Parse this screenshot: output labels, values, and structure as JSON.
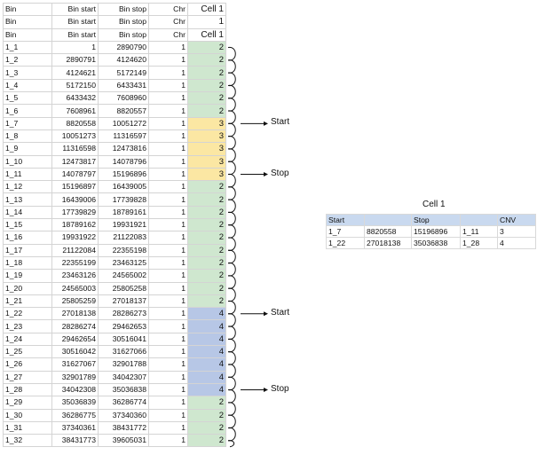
{
  "sheet": {
    "header_rows": [
      [
        "Bin",
        "Bin start",
        "Bin stop",
        "Chr",
        "Cell 1"
      ],
      [
        "Bin",
        "Bin start",
        "Bin stop",
        "Chr",
        "1"
      ],
      [
        "Bin",
        "Bin start",
        "Bin stop",
        "Chr",
        "Cell 1"
      ]
    ],
    "rows": [
      [
        "1_1",
        "1",
        "2890790",
        "1",
        "2"
      ],
      [
        "1_2",
        "2890791",
        "4124620",
        "1",
        "2"
      ],
      [
        "1_3",
        "4124621",
        "5172149",
        "1",
        "2"
      ],
      [
        "1_4",
        "5172150",
        "6433431",
        "1",
        "2"
      ],
      [
        "1_5",
        "6433432",
        "7608960",
        "1",
        "2"
      ],
      [
        "1_6",
        "7608961",
        "8820557",
        "1",
        "2"
      ],
      [
        "1_7",
        "8820558",
        "10051272",
        "1",
        "3"
      ],
      [
        "1_8",
        "10051273",
        "11316597",
        "1",
        "3"
      ],
      [
        "1_9",
        "11316598",
        "12473816",
        "1",
        "3"
      ],
      [
        "1_10",
        "12473817",
        "14078796",
        "1",
        "3"
      ],
      [
        "1_11",
        "14078797",
        "15196896",
        "1",
        "3"
      ],
      [
        "1_12",
        "15196897",
        "16439005",
        "1",
        "2"
      ],
      [
        "1_13",
        "16439006",
        "17739828",
        "1",
        "2"
      ],
      [
        "1_14",
        "17739829",
        "18789161",
        "1",
        "2"
      ],
      [
        "1_15",
        "18789162",
        "19931921",
        "1",
        "2"
      ],
      [
        "1_16",
        "19931922",
        "21122083",
        "1",
        "2"
      ],
      [
        "1_17",
        "21122084",
        "22355198",
        "1",
        "2"
      ],
      [
        "1_18",
        "22355199",
        "23463125",
        "1",
        "2"
      ],
      [
        "1_19",
        "23463126",
        "24565002",
        "1",
        "2"
      ],
      [
        "1_20",
        "24565003",
        "25805258",
        "1",
        "2"
      ],
      [
        "1_21",
        "25805259",
        "27018137",
        "1",
        "2"
      ],
      [
        "1_22",
        "27018138",
        "28286273",
        "1",
        "4"
      ],
      [
        "1_23",
        "28286274",
        "29462653",
        "1",
        "4"
      ],
      [
        "1_24",
        "29462654",
        "30516041",
        "1",
        "4"
      ],
      [
        "1_25",
        "30516042",
        "31627066",
        "1",
        "4"
      ],
      [
        "1_26",
        "31627067",
        "32901788",
        "1",
        "4"
      ],
      [
        "1_27",
        "32901789",
        "34042307",
        "1",
        "4"
      ],
      [
        "1_28",
        "34042308",
        "35036838",
        "1",
        "4"
      ],
      [
        "1_29",
        "35036839",
        "36286774",
        "1",
        "2"
      ],
      [
        "1_30",
        "36286775",
        "37340360",
        "1",
        "2"
      ],
      [
        "1_31",
        "37340361",
        "38431772",
        "1",
        "2"
      ],
      [
        "1_32",
        "38431773",
        "39605031",
        "1",
        "2"
      ]
    ]
  },
  "colors": {
    "cnv_2": "#cfe7cf",
    "cnv_3": "#fbe7a3",
    "cnv_4": "#b7c7e6",
    "summary_header": "#c9d9ef"
  },
  "annotations": [
    {
      "label": "Start",
      "row": "1_7"
    },
    {
      "label": "Stop",
      "row": "1_11"
    },
    {
      "label": "Start",
      "row": "1_22"
    },
    {
      "label": "Stop",
      "row": "1_28"
    }
  ],
  "summary": {
    "title": "Cell 1",
    "header": [
      "Start",
      "",
      "Stop",
      "",
      "CNV"
    ],
    "rows": [
      [
        "1_7",
        "8820558",
        "15196896",
        "1_11",
        "3"
      ],
      [
        "1_22",
        "27018138",
        "35036838",
        "1_28",
        "4"
      ]
    ]
  }
}
